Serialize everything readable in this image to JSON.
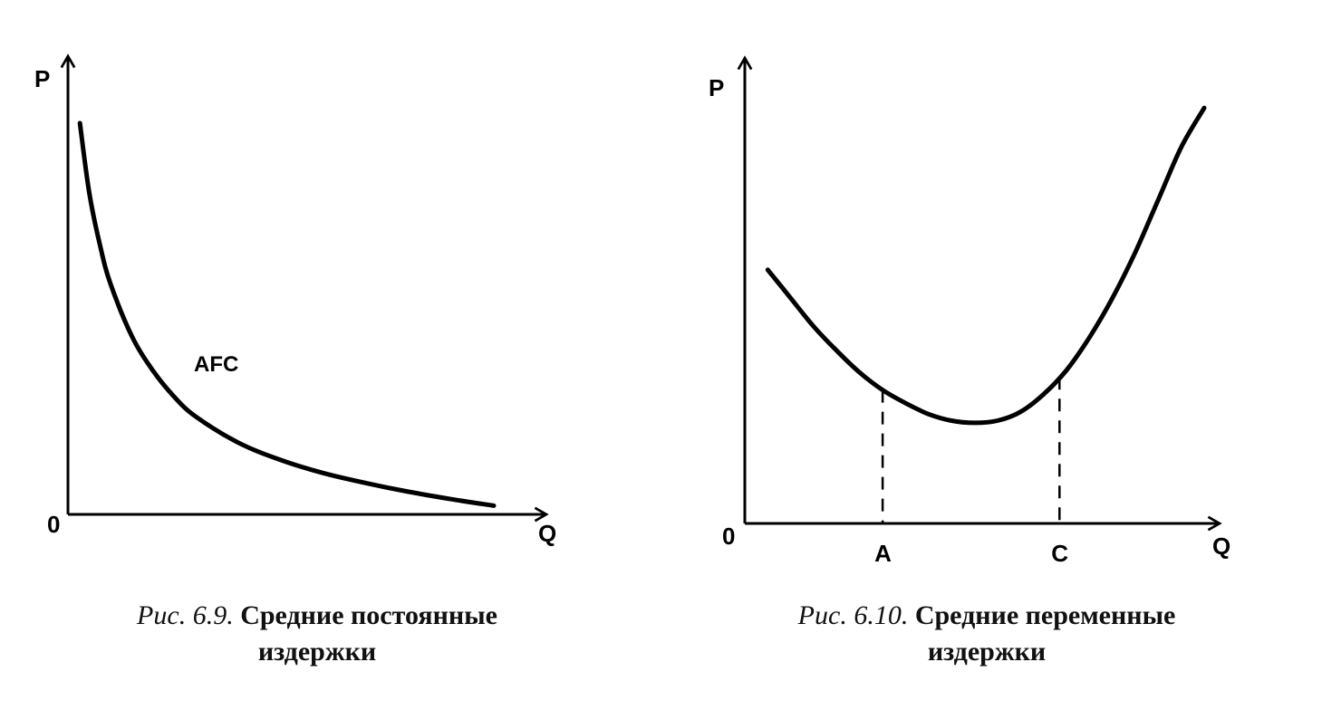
{
  "chart_data": [
    {
      "type": "line",
      "title": "",
      "xlabel": "Q",
      "ylabel": "P",
      "origin_label": "0",
      "xlim": [
        0,
        10
      ],
      "ylim": [
        0,
        10
      ],
      "grid": false,
      "legend": "none",
      "series": [
        {
          "name": "AFC",
          "x": [
            0.28,
            0.5,
            0.75,
            1.0,
            1.5,
            2.0,
            2.5,
            3.0,
            4.0,
            5.0,
            6.0,
            7.0,
            8.0,
            9.0,
            10.0
          ],
          "y": [
            9.0,
            7.4,
            6.2,
            5.3,
            4.1,
            3.3,
            2.7,
            2.25,
            1.65,
            1.25,
            0.95,
            0.72,
            0.52,
            0.35,
            0.2
          ]
        }
      ],
      "caption": {
        "lead": "Рис. 6.9.",
        "line1": "Средние постоянные",
        "line2": "издержки"
      }
    },
    {
      "type": "line",
      "title": "",
      "xlabel": "Q",
      "ylabel": "P",
      "origin_label": "0",
      "xlim": [
        0,
        10
      ],
      "ylim": [
        0,
        10
      ],
      "grid": false,
      "legend": "none",
      "series": [
        {
          "x": [
            0.5,
            1.0,
            1.5,
            2.0,
            2.5,
            3.0,
            3.5,
            4.0,
            4.5,
            5.0,
            5.5,
            6.0,
            6.5,
            7.0,
            7.5,
            8.0,
            8.5,
            9.0,
            9.5,
            10.0
          ],
          "y": [
            5.8,
            5.15,
            4.5,
            3.95,
            3.45,
            3.05,
            2.75,
            2.5,
            2.35,
            2.3,
            2.35,
            2.55,
            2.95,
            3.5,
            4.25,
            5.15,
            6.2,
            7.4,
            8.6,
            9.5
          ]
        }
      ],
      "markers": [
        {
          "label": "A",
          "x": 3.0,
          "y": 3.05
        },
        {
          "label": "C",
          "x": 6.85,
          "y": 3.35
        }
      ],
      "caption": {
        "lead": "Рис. 6.10.",
        "line1": "Средние переменные",
        "line2": "издержки"
      }
    }
  ]
}
